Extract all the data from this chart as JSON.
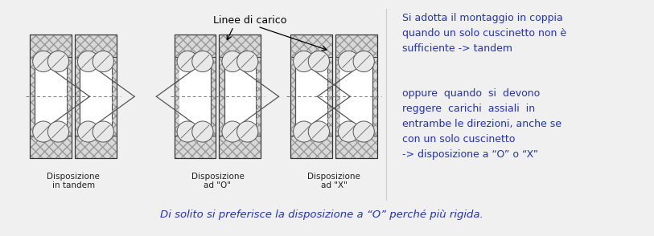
{
  "bg_color": "#f0f0f0",
  "text_color": "#2233bb",
  "label_color": "#222222",
  "line_color": "#333333",
  "figsize": [
    8.13,
    2.94
  ],
  "dpi": 100,
  "linee_di_carico": "Linee di carico",
  "text_block1": "Si adotta il montaggio in coppia\nquando un solo cuscinetto non è\nsufficiente -> tandem",
  "text_block2": "oppure  quando  si  devono\nreggere  carichi  assiali  in\nentrambe le direzioni, anche se\ncon un solo cuscinetto\n-> disposizione a “O” o “X”",
  "text_bottom": "Di solito si preferisce la disposizione a “O” perché più rigida.",
  "label1": "Disposizione\nin tandem",
  "label2": "Disposizione\nad \"O\"",
  "label3": "Disposizione\nad \"X\"",
  "outer_hatch_color": "#999999",
  "outer_face_color": "#d8d8d8",
  "inner_face_color": "#f5f5f5",
  "ball_face_color": "#e8e8e8",
  "load_line_color": "#555555"
}
